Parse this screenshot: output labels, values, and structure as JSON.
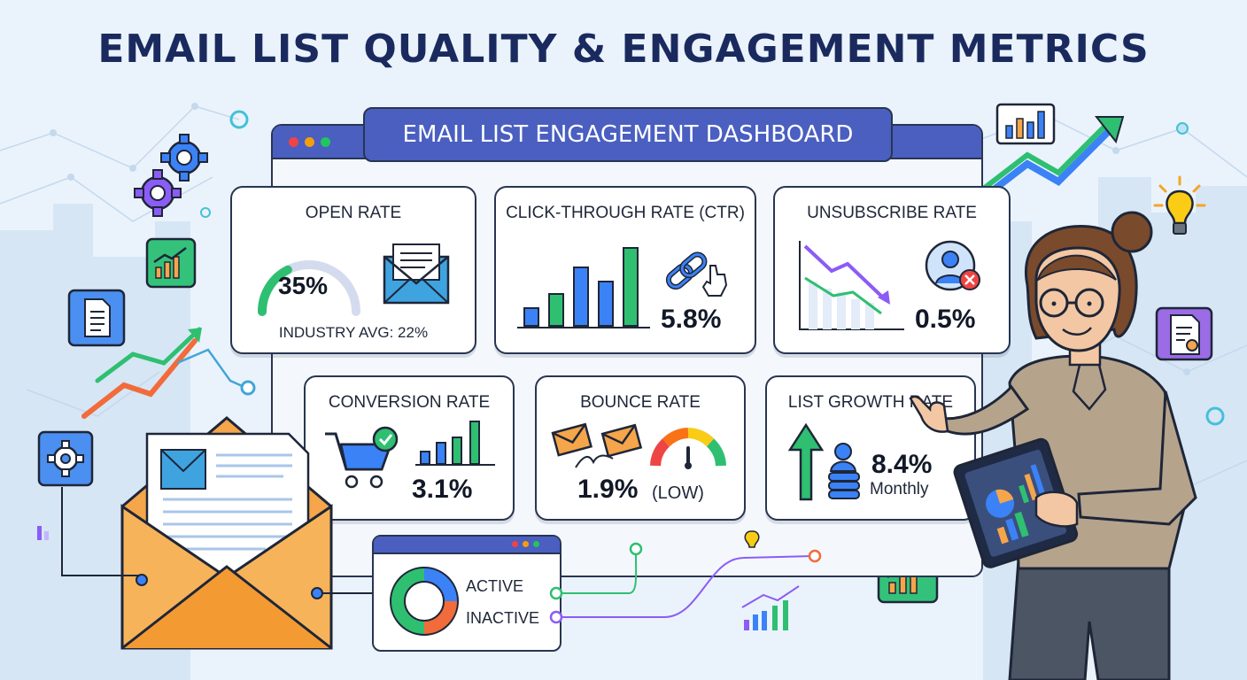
{
  "title": "EMAIL LIST QUALITY & ENGAGEMENT METRICS",
  "dashboard": {
    "title": "EMAIL LIST ENGAGEMENT DASHBOARD",
    "cards": {
      "open_rate": {
        "title": "OPEN RATE",
        "value": "35%",
        "note": "INDUSTRY AVG: 22%",
        "gauge_fraction": 0.35
      },
      "ctr": {
        "title": "CLICK-THROUGH RATE (CTR)",
        "value": "5.8%"
      },
      "unsubscribe": {
        "title": "UNSUBSCRIBE RATE",
        "value": "0.5%"
      },
      "conversion": {
        "title": "CONVERSION RATE",
        "value": "3.1%"
      },
      "bounce": {
        "title": "BOUNCE RATE",
        "value": "1.9%",
        "qualifier": "(LOW)"
      },
      "growth": {
        "title": "LIST GROWTH RATE",
        "value": "8.4%",
        "period": "Monthly"
      }
    },
    "segments": {
      "active_label": "ACTIVE",
      "inactive_label": "INACTIVE"
    }
  },
  "colors": {
    "title": "#1a2a5e",
    "dashboard_header": "#4a5fc0",
    "green": "#2fbf71",
    "blue": "#3b82f6",
    "purple": "#8b5cf6",
    "orange": "#f5a54a",
    "red": "#ef4444",
    "yellow": "#facc15"
  },
  "icons": [
    "gear-icon",
    "document-icon",
    "chart-icon",
    "lightbulb-icon",
    "envelope-icon",
    "link-icon",
    "cart-icon",
    "user-remove-icon",
    "arrow-up-icon",
    "tablet-icon"
  ]
}
